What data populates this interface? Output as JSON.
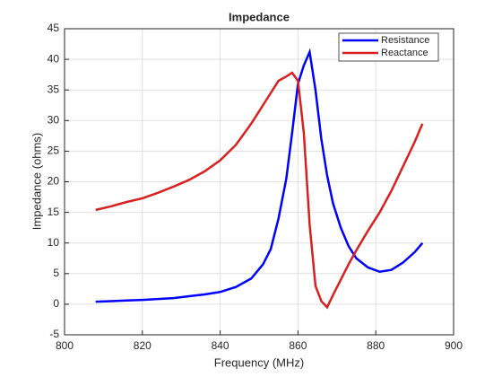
{
  "chart_data": {
    "type": "line",
    "title": "Impedance",
    "x_label": "Frequency (MHz)",
    "y_label": "Impedance (ohms)",
    "x": [
      808,
      812,
      816,
      820,
      824,
      828,
      832,
      836,
      840,
      844,
      848,
      851,
      853,
      855,
      857,
      858.5,
      860,
      861.5,
      863,
      864.5,
      866,
      867.5,
      869,
      871,
      873,
      875,
      878,
      881,
      884,
      887,
      890,
      892
    ],
    "series": [
      {
        "name": "Resistance",
        "color": "#0000ff",
        "values": [
          0.4,
          0.5,
          0.6,
          0.7,
          0.85,
          1.0,
          1.3,
          1.6,
          2.0,
          2.8,
          4.2,
          6.5,
          9,
          14,
          20.5,
          28,
          36,
          39,
          41.2,
          35,
          27,
          21,
          16.5,
          12.5,
          9.5,
          7.5,
          6,
          5.3,
          5.6,
          6.8,
          8.5,
          10
        ]
      },
      {
        "name": "Reactance",
        "color": "#d92020",
        "values": [
          15.4,
          16.0,
          16.7,
          17.3,
          18.2,
          19.2,
          20.3,
          21.7,
          23.5,
          26,
          29.5,
          32.5,
          34.5,
          36.5,
          37.2,
          37.8,
          36.5,
          28,
          13,
          3,
          0.5,
          -0.5,
          1.5,
          4,
          6.5,
          8.8,
          12,
          15,
          18.5,
          22.5,
          26.5,
          29.5
        ]
      }
    ],
    "xlim": [
      800,
      900
    ],
    "xticks": [
      800,
      820,
      840,
      860,
      880,
      900
    ],
    "ylim": [
      -5,
      45
    ],
    "yticks": [
      -5,
      0,
      5,
      10,
      15,
      20,
      25,
      30,
      35,
      40,
      45
    ],
    "grid": true,
    "legend": "upper right"
  }
}
